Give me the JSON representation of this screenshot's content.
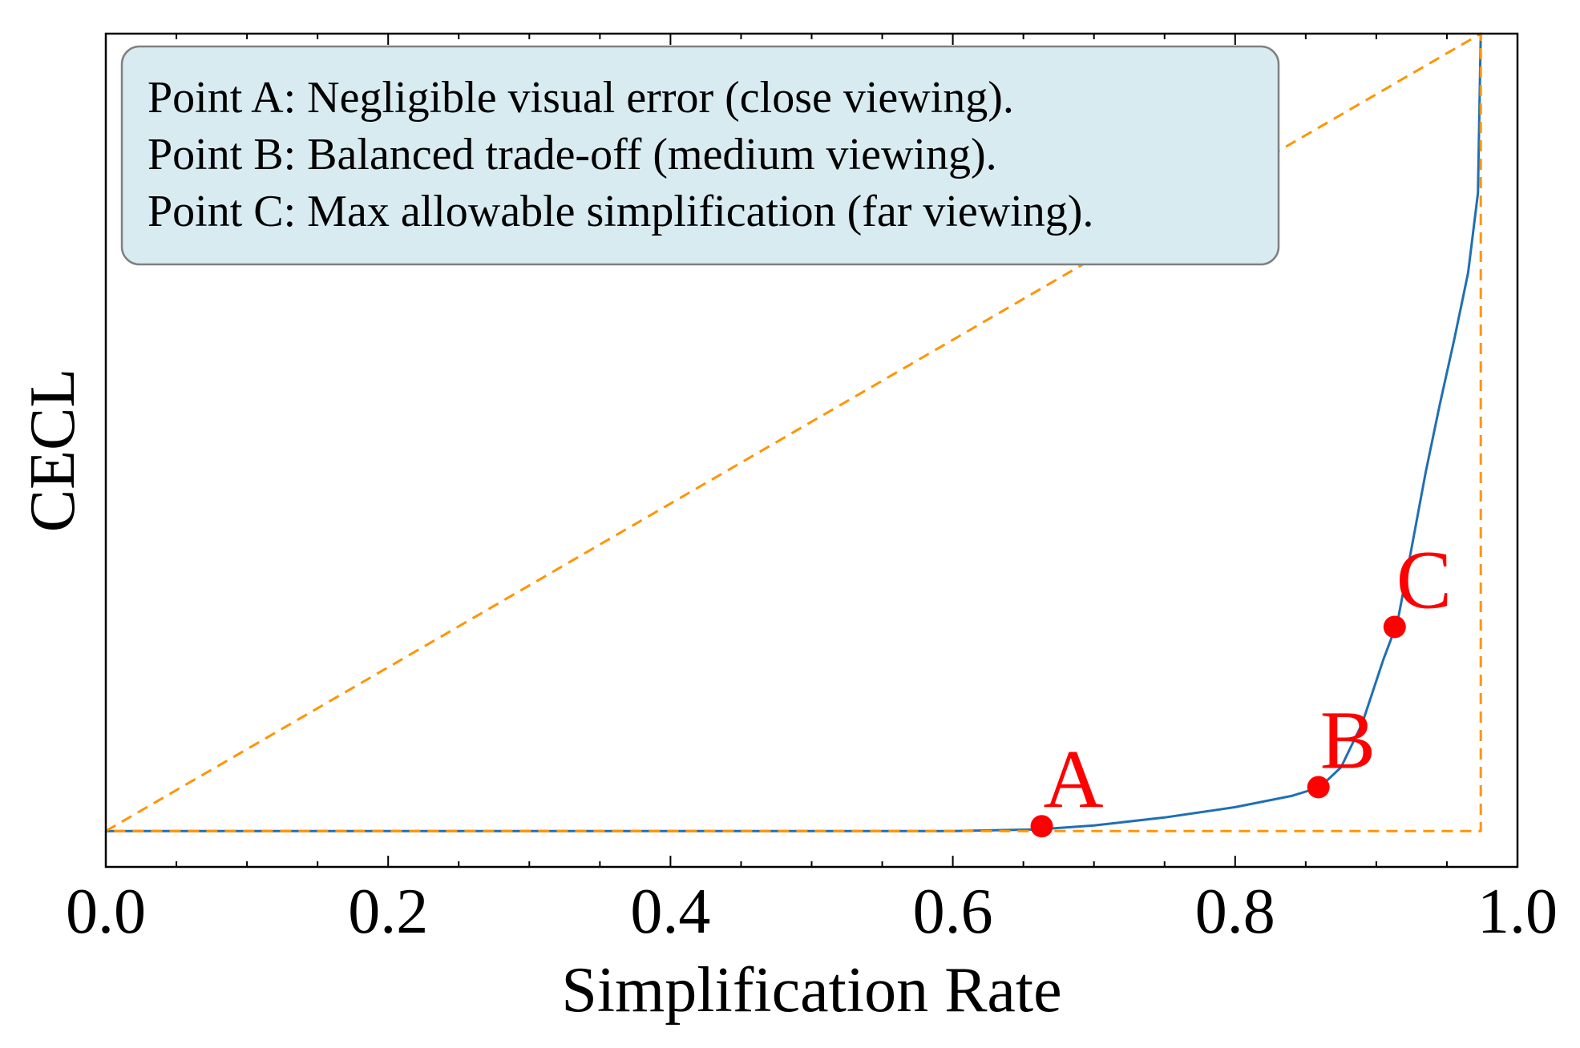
{
  "chart_data": {
    "type": "line",
    "xlabel": "Simplification Rate",
    "ylabel": "CECL",
    "xlim": [
      0.0,
      1.0
    ],
    "ylim": [
      -0.045,
      1.0
    ],
    "x_ticks": [
      0.0,
      0.2,
      0.4,
      0.6,
      0.8,
      1.0
    ],
    "x_tick_labels": [
      "0.0",
      "0.2",
      "0.4",
      "0.6",
      "0.8",
      "1.0"
    ],
    "y_tick_labels_shown": false,
    "grid": false,
    "minor_ticks": true,
    "series": [
      {
        "color": "#1f6fb4",
        "style": "solid",
        "x": [
          0.0,
          0.2,
          0.4,
          0.6,
          0.66,
          0.7,
          0.75,
          0.8,
          0.84,
          0.86,
          0.875,
          0.89,
          0.905,
          0.915,
          0.925,
          0.935,
          0.945,
          0.955,
          0.965,
          0.972,
          0.974
        ],
        "y": [
          0.0,
          0.0,
          0.0,
          0.0,
          0.002,
          0.007,
          0.017,
          0.03,
          0.044,
          0.055,
          0.08,
          0.135,
          0.215,
          0.262,
          0.355,
          0.45,
          0.535,
          0.615,
          0.7,
          0.8,
          1.0
        ]
      },
      {
        "color": "#ff9500",
        "style": "dashed",
        "x": [
          0.0,
          0.974,
          0.974,
          0.0
        ],
        "y": [
          0.0,
          1.0,
          0.0,
          0.0
        ]
      }
    ],
    "points": [
      {
        "label": "A",
        "x": 0.663,
        "y": 0.006,
        "color": "#ff0000"
      },
      {
        "label": "B",
        "x": 0.859,
        "y": 0.055,
        "color": "#ff0000"
      },
      {
        "label": "C",
        "x": 0.913,
        "y": 0.256,
        "color": "#ff0000"
      }
    ],
    "annotation_box": {
      "lines": [
        "Point A: Negligible visual error (close viewing).",
        "Point B: Balanced trade-off (medium viewing).",
        "Point C: Max allowable simplification (far viewing)."
      ],
      "background": "#d7ebf1",
      "border": "#808080",
      "placement": "top-left"
    }
  }
}
